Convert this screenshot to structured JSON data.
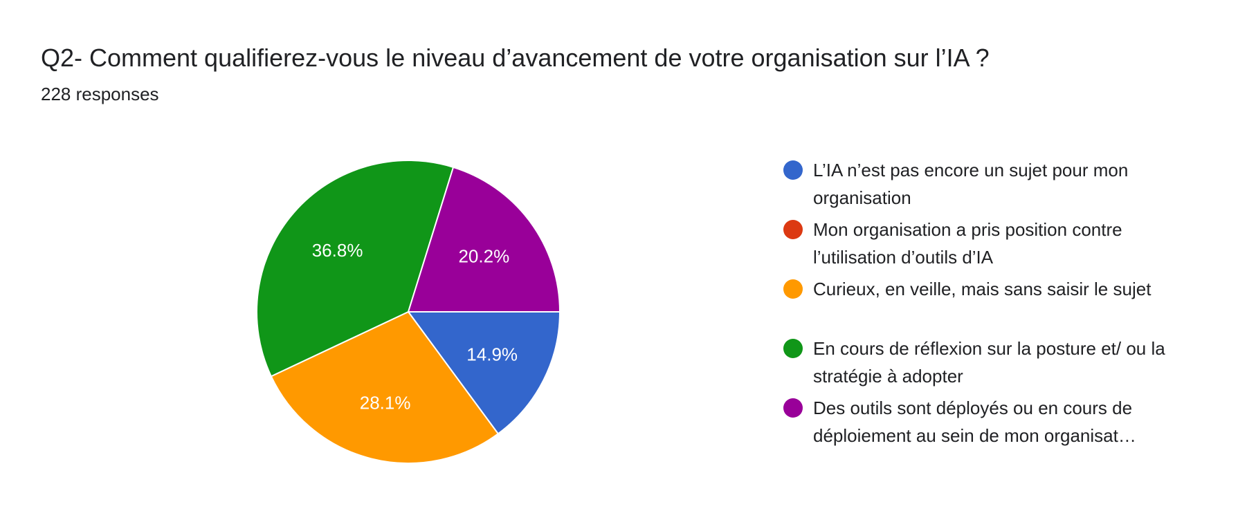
{
  "header": {
    "title": "Q2- Comment qualifierez-vous le niveau d’avancement de votre organisation sur l’IA ?",
    "responses": "228 responses"
  },
  "chart_data": {
    "type": "pie",
    "title": "Q2- Comment qualifierez-vous le niveau d’avancement de votre organisation sur l’IA ?",
    "legend_position": "right",
    "slices": [
      {
        "label": "L’IA n’est pas encore un sujet pour mon organisation",
        "value": 14.9,
        "display": "14.9%",
        "color": "#3366cc"
      },
      {
        "label": "Mon organisation a pris position contre l’utilisation d’outils d’IA",
        "value": 0,
        "display": "",
        "color": "#dc3912"
      },
      {
        "label": "Curieux, en veille, mais sans saisir le sujet",
        "value": 28.1,
        "display": "28.1%",
        "color": "#ff9900"
      },
      {
        "label": "En cours de réflexion sur la posture et/ ou la stratégie à adopter",
        "value": 36.8,
        "display": "36.8%",
        "color": "#109618"
      },
      {
        "label": "Des outils sont déployés ou en cours de déploiement au sein de mon organisat…",
        "value": 20.2,
        "display": "20.2%",
        "color": "#990099"
      }
    ]
  }
}
